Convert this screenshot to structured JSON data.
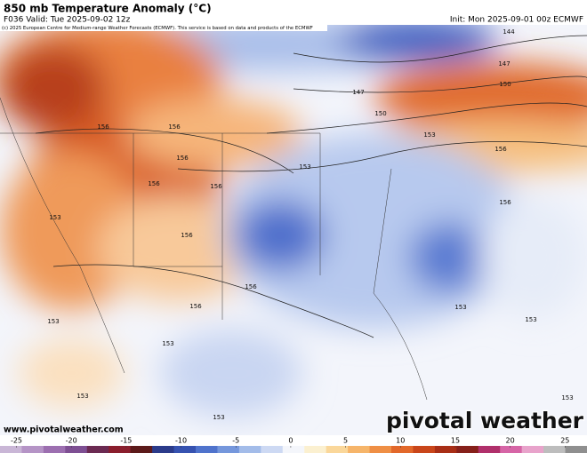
{
  "header": {
    "title": "850 mb Temperature Anomaly (°C)",
    "valid": "F036 Valid: Tue 2025-09-02 12z",
    "init": "Init: Mon 2025-09-01 00z ECMWF",
    "credit": "(c) 2025 European Centre for Medium-range Weather Forecasts (ECMWF). This service is based on data and products of the ECMWF"
  },
  "contour_labels": [
    "144",
    "147",
    "150",
    "147",
    "150",
    "153",
    "156",
    "156",
    "156",
    "156",
    "156",
    "153",
    "156",
    "156",
    "153",
    "156",
    "156",
    "156",
    "153",
    "153",
    "153",
    "153",
    "153",
    "153",
    "153"
  ],
  "footer": {
    "url": "www.pivotalweather.com",
    "logo": "pivotal weather"
  },
  "colorbar": {
    "lim": [
      -26.5,
      27
    ],
    "ticks": [
      -25,
      -20,
      -15,
      -10,
      -5,
      0,
      5,
      10,
      15,
      20,
      25
    ],
    "colors": [
      "#c9b6d6",
      "#b594c6",
      "#9c6fb0",
      "#7e4f93",
      "#6b2a52",
      "#8a1e2d",
      "#5c1a1a",
      "#2b3b8a",
      "#3652b0",
      "#4f73cc",
      "#7597dc",
      "#a3bce9",
      "#cdd9f3",
      "#f4f6fb",
      "#fbf0d0",
      "#fad79a",
      "#f6b56a",
      "#ef8f45",
      "#e2682a",
      "#c9461a",
      "#a82e16",
      "#86201a",
      "#b0306b",
      "#d665a6",
      "#e8a3cb",
      "#bdbdbd",
      "#8f8f8f"
    ]
  }
}
